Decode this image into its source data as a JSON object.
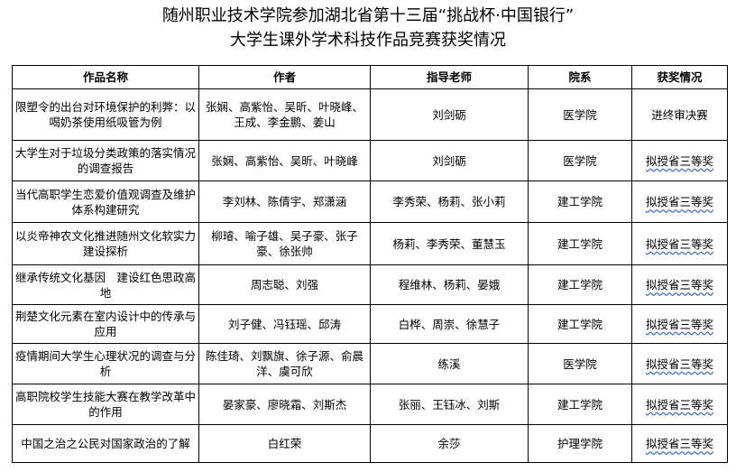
{
  "title": {
    "line1": "随州职业技术学院参加湖北省第十三届“挑战杯·中国银行”",
    "line2": "大学生课外学术科技作品竞赛获奖情况"
  },
  "table": {
    "headers": [
      "作品名称",
      "作者",
      "指导老师",
      "院系",
      "获奖情况"
    ],
    "rows": [
      [
        "限塑令的出台对环境保护的利弊：以喝奶茶使用纸吸管为例",
        "张娴、高紫怡、吴昕、叶晓峰、王成、李金鹏、姜山",
        "刘剑砺",
        "医学院",
        "进终审决赛"
      ],
      [
        "大学生对于垃圾分类政策的落实情况的调查报告",
        "张娴、高紫怡、吴昕、叶晓峰",
        "刘剑砺",
        "医学院",
        "拟授省三等奖"
      ],
      [
        "当代高职学生恋爱价值观调查及维护体系构建研究",
        "李刘林、陈倩宇、郑潇涵",
        "李秀荣、杨莉、张小莉",
        "建工学院",
        "拟授省三等奖"
      ],
      [
        "以炎帝神农文化推进随州文化软实力建设探析",
        "柳璿、喻子雄、吴子豪、张子豪、徐张帅",
        "杨莉、李秀荣、董慧玉",
        "建工学院",
        "拟授省三等奖"
      ],
      [
        "继承传统文化基因　建设红色思政高地",
        "周志聪、刘强",
        "程维林、杨莉、晏娥",
        "建工学院",
        "拟授省三等奖"
      ],
      [
        "荆楚文化元素在室内设计中的传承与应用",
        "刘子健、冯钰瑶、邱涛",
        "白桦、周崇、徐慧子",
        "建工学院",
        "拟授省三等奖"
      ],
      [
        "疫情期间大学生心理状况的调查与分析",
        "陈佳琦、刘飘旗、徐子源、俞晨洋、虞可欣",
        "练溪",
        "医学院",
        "拟授省三等奖"
      ],
      [
        "高职院校学生技能大赛在教学改革中的作用",
        "晏家豪、廖晓霜、刘斯杰",
        "张丽、王钰冰、刘斯",
        "建工学院",
        "拟授省三等奖"
      ],
      [
        "中国之治之公民对国家政治的了解",
        "白红荣",
        "余莎",
        "护理学院",
        "拟授省三等奖"
      ]
    ]
  }
}
